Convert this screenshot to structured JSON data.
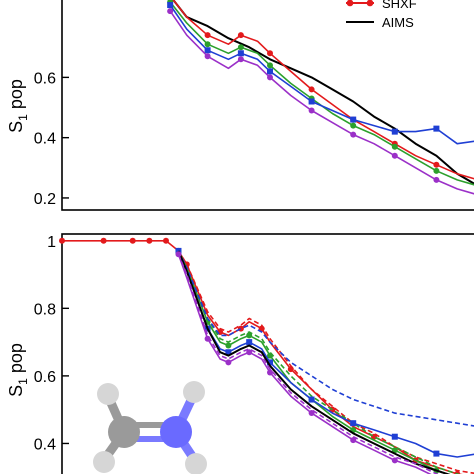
{
  "chart_data": [
    {
      "type": "line",
      "xlabel": "",
      "ylabel": "S",
      "ylabel_subscript": "1",
      "ylabel_suffix": " pop",
      "ylim": [
        0.16,
        0.87
      ],
      "y_ticks": [
        "0.2",
        "0.4",
        "0.6"
      ],
      "y_tick_values": [
        0.2,
        0.4,
        0.6
      ],
      "xlim": [
        0,
        100
      ],
      "legend": {
        "placement": "top-right",
        "entries": [
          {
            "label": "SHXF",
            "color": "#e31a1c",
            "style": "line-dot"
          },
          {
            "label": "AIMS",
            "color": "#000000",
            "style": "line"
          }
        ]
      },
      "series": [
        {
          "name": "AIMS",
          "color": "#000000",
          "marker": "",
          "x": [
            26,
            30,
            35,
            40,
            45,
            50,
            55,
            60,
            65,
            70,
            75,
            80,
            85,
            90,
            95,
            100
          ],
          "y": [
            0.87,
            0.8,
            0.77,
            0.73,
            0.7,
            0.66,
            0.63,
            0.6,
            0.56,
            0.52,
            0.47,
            0.43,
            0.38,
            0.34,
            0.28,
            0.24
          ]
        },
        {
          "name": "",
          "color": "#e31a1c",
          "marker": "circle",
          "x": [
            26,
            30,
            35,
            40,
            43,
            47,
            50,
            55,
            60,
            65,
            70,
            75,
            80,
            85,
            90,
            95,
            100
          ],
          "y": [
            0.87,
            0.8,
            0.74,
            0.71,
            0.74,
            0.72,
            0.68,
            0.62,
            0.56,
            0.51,
            0.46,
            0.42,
            0.38,
            0.34,
            0.31,
            0.28,
            0.26
          ]
        },
        {
          "name": "",
          "color": "#2ca02c",
          "marker": "circle",
          "x": [
            26,
            30,
            35,
            40,
            43,
            47,
            50,
            55,
            60,
            65,
            70,
            75,
            80,
            85,
            90,
            95,
            100
          ],
          "y": [
            0.85,
            0.78,
            0.71,
            0.68,
            0.7,
            0.68,
            0.64,
            0.58,
            0.53,
            0.48,
            0.44,
            0.41,
            0.37,
            0.33,
            0.29,
            0.26,
            0.24
          ]
        },
        {
          "name": "",
          "color": "#1f3fd4",
          "marker": "square",
          "x": [
            26,
            30,
            35,
            40,
            43,
            47,
            50,
            55,
            60,
            65,
            70,
            75,
            80,
            85,
            90,
            95,
            100
          ],
          "y": [
            0.84,
            0.76,
            0.69,
            0.66,
            0.68,
            0.66,
            0.62,
            0.57,
            0.52,
            0.49,
            0.46,
            0.44,
            0.42,
            0.42,
            0.43,
            0.38,
            0.39
          ]
        },
        {
          "name": "",
          "color": "#9b30c8",
          "marker": "circle",
          "x": [
            26,
            30,
            35,
            40,
            43,
            47,
            50,
            55,
            60,
            65,
            70,
            75,
            80,
            85,
            90,
            95,
            100
          ],
          "y": [
            0.82,
            0.74,
            0.67,
            0.63,
            0.66,
            0.64,
            0.6,
            0.54,
            0.49,
            0.45,
            0.41,
            0.38,
            0.34,
            0.3,
            0.26,
            0.23,
            0.21
          ]
        }
      ]
    },
    {
      "type": "line",
      "xlabel": "",
      "ylabel": "S",
      "ylabel_subscript": "1",
      "ylabel_suffix": " pop",
      "ylim": [
        0.28,
        1.02
      ],
      "y_ticks": [
        "1",
        "0.8",
        "0.6",
        "0.4"
      ],
      "y_tick_values": [
        1.0,
        0.8,
        0.6,
        0.4
      ],
      "xlim": [
        0,
        100
      ],
      "inset": "molecule-structure",
      "series": [
        {
          "name": "",
          "color": "#e31a1c",
          "marker": "circle",
          "dashed": false,
          "x": [
            0,
            5,
            10,
            15,
            17,
            19,
            21,
            23,
            25,
            28,
            30,
            35,
            38,
            40,
            43,
            45,
            48,
            50,
            55,
            60,
            65,
            70,
            75,
            80,
            85,
            90,
            95,
            100
          ],
          "y": [
            1,
            1,
            1,
            1,
            1,
            1,
            1,
            1,
            1,
            0.97,
            0.93,
            0.78,
            0.73,
            0.72,
            0.74,
            0.76,
            0.74,
            0.7,
            0.62,
            0.56,
            0.5,
            0.45,
            0.42,
            0.39,
            0.35,
            0.33,
            0.31,
            0.3
          ]
        },
        {
          "name": "",
          "color": "#e31a1c",
          "marker": "",
          "dashed": true,
          "x": [
            28,
            30,
            35,
            38,
            40,
            43,
            45,
            48,
            50,
            55,
            60,
            65,
            70,
            75,
            80,
            85,
            90,
            95,
            100
          ],
          "y": [
            0.97,
            0.93,
            0.79,
            0.74,
            0.73,
            0.75,
            0.77,
            0.75,
            0.71,
            0.63,
            0.56,
            0.51,
            0.46,
            0.43,
            0.39,
            0.36,
            0.34,
            0.32,
            0.31
          ]
        },
        {
          "name": "",
          "color": "#2ca02c",
          "marker": "circle",
          "dashed": false,
          "x": [
            28,
            30,
            35,
            38,
            40,
            43,
            45,
            48,
            50,
            55,
            60,
            65,
            70,
            75,
            80,
            85,
            90,
            95,
            100
          ],
          "y": [
            0.97,
            0.92,
            0.76,
            0.7,
            0.69,
            0.71,
            0.72,
            0.7,
            0.66,
            0.58,
            0.53,
            0.48,
            0.44,
            0.41,
            0.38,
            0.35,
            0.32,
            0.3,
            0.28
          ]
        },
        {
          "name": "",
          "color": "#2ca02c",
          "marker": "",
          "dashed": true,
          "x": [
            28,
            30,
            35,
            38,
            40,
            43,
            45,
            48,
            50,
            55,
            60,
            65,
            70,
            75,
            80,
            85,
            90,
            95,
            100
          ],
          "y": [
            0.97,
            0.92,
            0.77,
            0.71,
            0.7,
            0.72,
            0.73,
            0.71,
            0.67,
            0.6,
            0.54,
            0.5,
            0.46,
            0.42,
            0.39,
            0.36,
            0.33,
            0.31,
            0.29
          ]
        },
        {
          "name": "",
          "color": "#1f3fd4",
          "marker": "square",
          "dashed": false,
          "x": [
            28,
            30,
            35,
            38,
            40,
            43,
            45,
            48,
            50,
            55,
            60,
            65,
            70,
            75,
            80,
            85,
            90,
            95,
            100
          ],
          "y": [
            0.97,
            0.91,
            0.74,
            0.68,
            0.67,
            0.69,
            0.7,
            0.68,
            0.64,
            0.58,
            0.53,
            0.49,
            0.46,
            0.44,
            0.42,
            0.4,
            0.37,
            0.36,
            0.37
          ]
        },
        {
          "name": "",
          "color": "#1f3fd4",
          "marker": "",
          "dashed": true,
          "x": [
            28,
            30,
            35,
            38,
            40,
            43,
            45,
            48,
            50,
            55,
            60,
            65,
            70,
            75,
            80,
            85,
            90,
            95,
            100
          ],
          "y": [
            0.97,
            0.92,
            0.77,
            0.72,
            0.72,
            0.74,
            0.75,
            0.73,
            0.7,
            0.64,
            0.6,
            0.56,
            0.53,
            0.51,
            0.49,
            0.48,
            0.47,
            0.46,
            0.45
          ]
        },
        {
          "name": "",
          "color": "#000000",
          "marker": "",
          "dashed": false,
          "x": [
            28,
            30,
            35,
            38,
            40,
            43,
            45,
            48,
            50,
            55,
            60,
            65,
            70,
            75,
            80,
            85,
            90,
            95,
            100
          ],
          "y": [
            0.97,
            0.91,
            0.74,
            0.67,
            0.66,
            0.68,
            0.69,
            0.67,
            0.63,
            0.56,
            0.51,
            0.47,
            0.43,
            0.4,
            0.37,
            0.34,
            0.32,
            0.3,
            0.29
          ]
        },
        {
          "name": "",
          "color": "#9b30c8",
          "marker": "circle",
          "dashed": false,
          "x": [
            28,
            30,
            35,
            38,
            40,
            43,
            45,
            48,
            50,
            55,
            60,
            65,
            70,
            75,
            80,
            85,
            90,
            95,
            100
          ],
          "y": [
            0.96,
            0.89,
            0.71,
            0.65,
            0.64,
            0.66,
            0.67,
            0.65,
            0.61,
            0.54,
            0.49,
            0.45,
            0.41,
            0.38,
            0.35,
            0.33,
            0.3,
            0.29,
            0.28
          ]
        },
        {
          "name": "",
          "color": "#9b30c8",
          "marker": "",
          "dashed": true,
          "x": [
            28,
            30,
            35,
            38,
            40,
            43,
            45,
            48,
            50,
            55,
            60,
            65,
            70,
            75,
            80,
            85,
            90,
            95,
            100
          ],
          "y": [
            0.96,
            0.9,
            0.72,
            0.66,
            0.65,
            0.67,
            0.68,
            0.66,
            0.62,
            0.55,
            0.5,
            0.46,
            0.42,
            0.39,
            0.36,
            0.34,
            0.31,
            0.3,
            0.29
          ]
        }
      ]
    }
  ],
  "molecule": {
    "atoms": [
      {
        "element": "C",
        "color": "#9a9a9a"
      },
      {
        "element": "N",
        "color": "#6a6aff"
      },
      {
        "element": "H",
        "color": "#d6d6d6"
      },
      {
        "element": "H",
        "color": "#d6d6d6"
      },
      {
        "element": "H",
        "color": "#d6d6d6"
      },
      {
        "element": "H",
        "color": "#d6d6d6"
      }
    ]
  }
}
